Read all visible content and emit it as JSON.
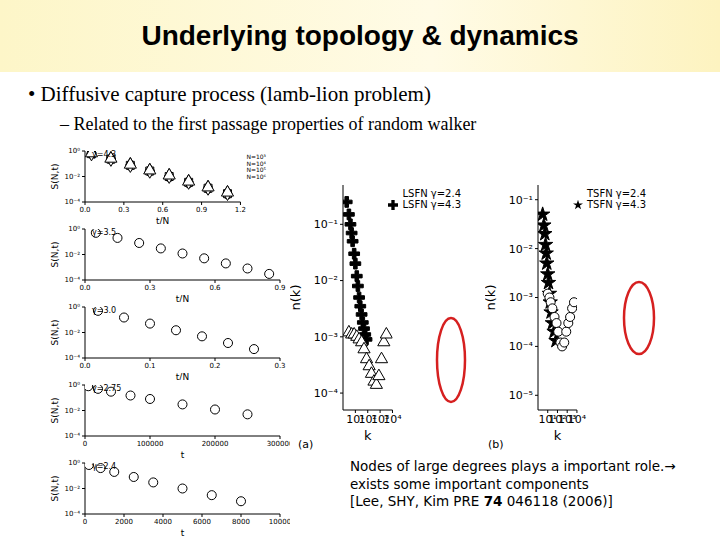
{
  "slide": {
    "title": "Underlying topology & dynamics",
    "bullet": "• Diffusive capture process (lamb-lion problem)",
    "sub_bullet": "– Related to the first passage properties of random walker",
    "caption": "Nodes of large degrees plays a important role.→ exists some important components",
    "citation": {
      "before": "[Lee, SHY, Kim PRE ",
      "volume": "74",
      "after": " 046118 (2006)]"
    }
  },
  "chart_data": [
    {
      "type": "scatter",
      "annotation": "γ=4.3",
      "x_label": "t/N",
      "y_label": "S(N,t)",
      "log": "y",
      "legend": "upper right",
      "xlim": [
        0,
        1.2
      ],
      "xticks": [
        {
          "value": 0,
          "label": "0.0"
        },
        0.3,
        0.6,
        0.9,
        1.2
      ],
      "ylim": [
        0.0001,
        1
      ],
      "yticks": [
        {
          "value": 1,
          "label": "10⁰"
        },
        {
          "value": 0.01,
          "label": "10⁻²"
        },
        {
          "value": 0.0001,
          "label": "10⁻⁴"
        }
      ],
      "x": [
        0.05,
        0.2,
        0.35,
        0.5,
        0.65,
        0.8,
        0.95,
        1.1
      ],
      "series": [
        {
          "name": "N=10³",
          "color": "#000000",
          "marker": "circle",
          "values": [
            0.6,
            0.22,
            0.07,
            0.025,
            0.009,
            0.003,
            0.0011,
            0.0004
          ]
        },
        {
          "name": "N=10⁴",
          "color": "#000000",
          "marker": "square",
          "values": [
            0.62,
            0.23,
            0.075,
            0.027,
            0.01,
            0.0035,
            0.0012,
            0.00045
          ]
        },
        {
          "name": "N=10⁵",
          "color": "#000000",
          "marker": "diamond",
          "values": [
            0.65,
            0.24,
            0.08,
            0.028,
            0.011,
            0.0038,
            0.0013,
            0.0005
          ]
        },
        {
          "name": "N=10⁶",
          "color": "#000000",
          "marker": "triangle",
          "values": [
            0.66,
            0.25,
            0.085,
            0.03,
            0.012,
            0.004,
            0.0014,
            0.00055
          ]
        }
      ]
    },
    {
      "type": "scatter",
      "annotation": "γ=3.5",
      "x_label": "t/N",
      "y_label": "S(N,t)",
      "log": "y",
      "color": "#000000",
      "marker": "circle",
      "xlim": [
        0,
        0.9
      ],
      "xticks": [
        {
          "value": 0,
          "label": "0.0"
        },
        0.3,
        0.6,
        0.9
      ],
      "ylim": [
        0.0001,
        1
      ],
      "yticks": [
        {
          "value": 1,
          "label": "10⁰"
        },
        {
          "value": 0.01,
          "label": "10⁻²"
        },
        {
          "value": 0.0001,
          "label": "10⁻⁴"
        }
      ],
      "x": [
        0.05,
        0.15,
        0.25,
        0.35,
        0.45,
        0.55,
        0.65,
        0.75,
        0.85
      ],
      "values": [
        0.5,
        0.2,
        0.08,
        0.03,
        0.012,
        0.005,
        0.002,
        0.0008,
        0.0003
      ]
    },
    {
      "type": "scatter",
      "annotation": "γ=3.0",
      "x_label": "t/N",
      "y_label": "S(N,t)",
      "log": "y",
      "color": "#000000",
      "marker": "circle",
      "xlim": [
        0,
        0.3
      ],
      "xticks": [
        {
          "value": 0,
          "label": "0.0"
        },
        0.1,
        0.2,
        0.3
      ],
      "ylim": [
        0.0001,
        1
      ],
      "yticks": [
        {
          "value": 1,
          "label": "10⁰"
        },
        {
          "value": 0.01,
          "label": "10⁻²"
        },
        {
          "value": 0.0001,
          "label": "10⁻⁴"
        }
      ],
      "x": [
        0.02,
        0.06,
        0.1,
        0.14,
        0.18,
        0.22,
        0.26
      ],
      "values": [
        0.5,
        0.15,
        0.05,
        0.015,
        0.005,
        0.0015,
        0.0005
      ]
    },
    {
      "type": "scatter",
      "annotation": "γ=2.75",
      "x_label": "t",
      "y_label": "S(N,t)",
      "log": "y",
      "color": "#000000",
      "marker": "circle",
      "xlim": [
        0,
        300000
      ],
      "xticks": [
        0,
        100000,
        200000,
        300000
      ],
      "ylim": [
        0.0001,
        1
      ],
      "yticks": [
        {
          "value": 1,
          "label": "10⁰"
        },
        {
          "value": 0.01,
          "label": "10⁻²"
        },
        {
          "value": 0.0001,
          "label": "10⁻⁴"
        }
      ],
      "x": [
        5000,
        20000,
        40000,
        70000,
        100000,
        150000,
        200000,
        250000
      ],
      "values": [
        0.8,
        0.5,
        0.3,
        0.15,
        0.08,
        0.03,
        0.012,
        0.005
      ]
    },
    {
      "type": "scatter",
      "annotation": "γ=2.4",
      "x_label": "t",
      "y_label": "S(N,t)",
      "log": "y",
      "color": "#000000",
      "marker": "circle",
      "xlim": [
        0,
        10000
      ],
      "xticks": [
        0,
        2000,
        4000,
        6000,
        8000,
        10000
      ],
      "ylim": [
        0.0001,
        1
      ],
      "yticks": [
        {
          "value": 1,
          "label": "10⁰"
        },
        {
          "value": 0.01,
          "label": "10⁻²"
        },
        {
          "value": 0.0001,
          "label": "10⁻⁴"
        }
      ],
      "x": [
        200,
        800,
        1500,
        2500,
        3500,
        5000,
        6500,
        8000
      ],
      "values": [
        0.7,
        0.4,
        0.2,
        0.08,
        0.03,
        0.01,
        0.003,
        0.001
      ]
    },
    {
      "type": "scatter",
      "title": "(a)",
      "x_label": "k",
      "y_label": "n(k)",
      "log": true,
      "legend": "upper right",
      "xlim": [
        1,
        10000
      ],
      "xticks": [
        {
          "value": 10,
          "label": "10¹"
        },
        {
          "value": 100,
          "label": "10²"
        },
        {
          "value": 1000,
          "label": "10³"
        },
        {
          "value": 10000,
          "label": "10⁴"
        }
      ],
      "ylim": [
        5e-05,
        0.5
      ],
      "yticks": [
        {
          "value": 0.1,
          "label": "10⁻¹"
        },
        {
          "value": 0.01,
          "label": "10⁻²"
        },
        {
          "value": 0.001,
          "label": "10⁻³"
        },
        {
          "value": 0.0001,
          "label": "10⁻⁴"
        }
      ],
      "series": [
        {
          "name": "LSFN γ=4.3",
          "color": "#000000",
          "marker": "cross",
          "x": [
            2,
            3,
            4,
            5,
            6,
            8,
            10,
            13,
            16,
            20,
            25,
            32,
            40,
            50,
            63,
            80
          ],
          "values": [
            0.25,
            0.15,
            0.1,
            0.07,
            0.05,
            0.03,
            0.02,
            0.012,
            0.008,
            0.005,
            0.0035,
            0.0025,
            0.0018,
            0.0014,
            0.0011,
            0.0009
          ]
        },
        {
          "name": "LSFN γ=2.4",
          "color": "#000000",
          "marker": "triangle",
          "x": [
            3,
            5,
            8,
            13,
            20,
            32,
            50,
            80,
            130,
            200,
            320,
            500,
            800,
            1300,
            2000,
            3200
          ],
          "values": [
            0.0012,
            0.0011,
            0.0011,
            0.001,
            0.0009,
            0.0008,
            0.0006,
            0.0004,
            0.0003,
            0.00022,
            0.00016,
            0.00014,
            0.0002,
            0.0004,
            0.0008,
            0.0011
          ]
        }
      ]
    },
    {
      "type": "scatter",
      "title": "(b)",
      "x_label": "k",
      "y_label": "n(k)",
      "log": true,
      "legend": "upper right",
      "xlim": [
        1,
        10000
      ],
      "xticks": [
        {
          "value": 10,
          "label": "10¹"
        },
        {
          "value": 100,
          "label": "10²"
        },
        {
          "value": 1000,
          "label": "10³"
        },
        {
          "value": 10000,
          "label": "10⁴"
        }
      ],
      "ylim": [
        5e-06,
        0.2
      ],
      "yticks": [
        {
          "value": 0.1,
          "label": "10⁻¹"
        },
        {
          "value": 0.01,
          "label": "10⁻²"
        },
        {
          "value": 0.001,
          "label": "10⁻³"
        },
        {
          "value": 0.0001,
          "label": "10⁻⁴"
        },
        {
          "value": 1e-05,
          "label": "10⁻⁵"
        }
      ],
      "series": [
        {
          "name": "TSFN γ=4.3",
          "color": "#000000",
          "marker": "star",
          "x": [
            3,
            4,
            5,
            6,
            7,
            8,
            10,
            12,
            15,
            18,
            22,
            30,
            45,
            70
          ],
          "values": [
            0.05,
            0.03,
            0.02,
            0.012,
            0.008,
            0.005,
            0.003,
            0.002,
            0.0012,
            0.0008,
            0.0005,
            0.0003,
            0.0002,
            0.00013
          ]
        },
        {
          "name": "TSFN γ=2.4",
          "color": "#000000",
          "marker": "circle",
          "x": [
            10,
            15,
            20,
            30,
            50,
            80,
            120,
            200,
            300,
            500,
            800,
            1300,
            2000,
            3200,
            5000
          ],
          "values": [
            0.0012,
            0.001,
            0.0008,
            0.0006,
            0.0004,
            0.0003,
            0.0002,
            0.00012,
            0.0001,
            0.00012,
            0.0002,
            0.0003,
            0.0004,
            0.0006,
            0.0008
          ]
        }
      ]
    }
  ]
}
